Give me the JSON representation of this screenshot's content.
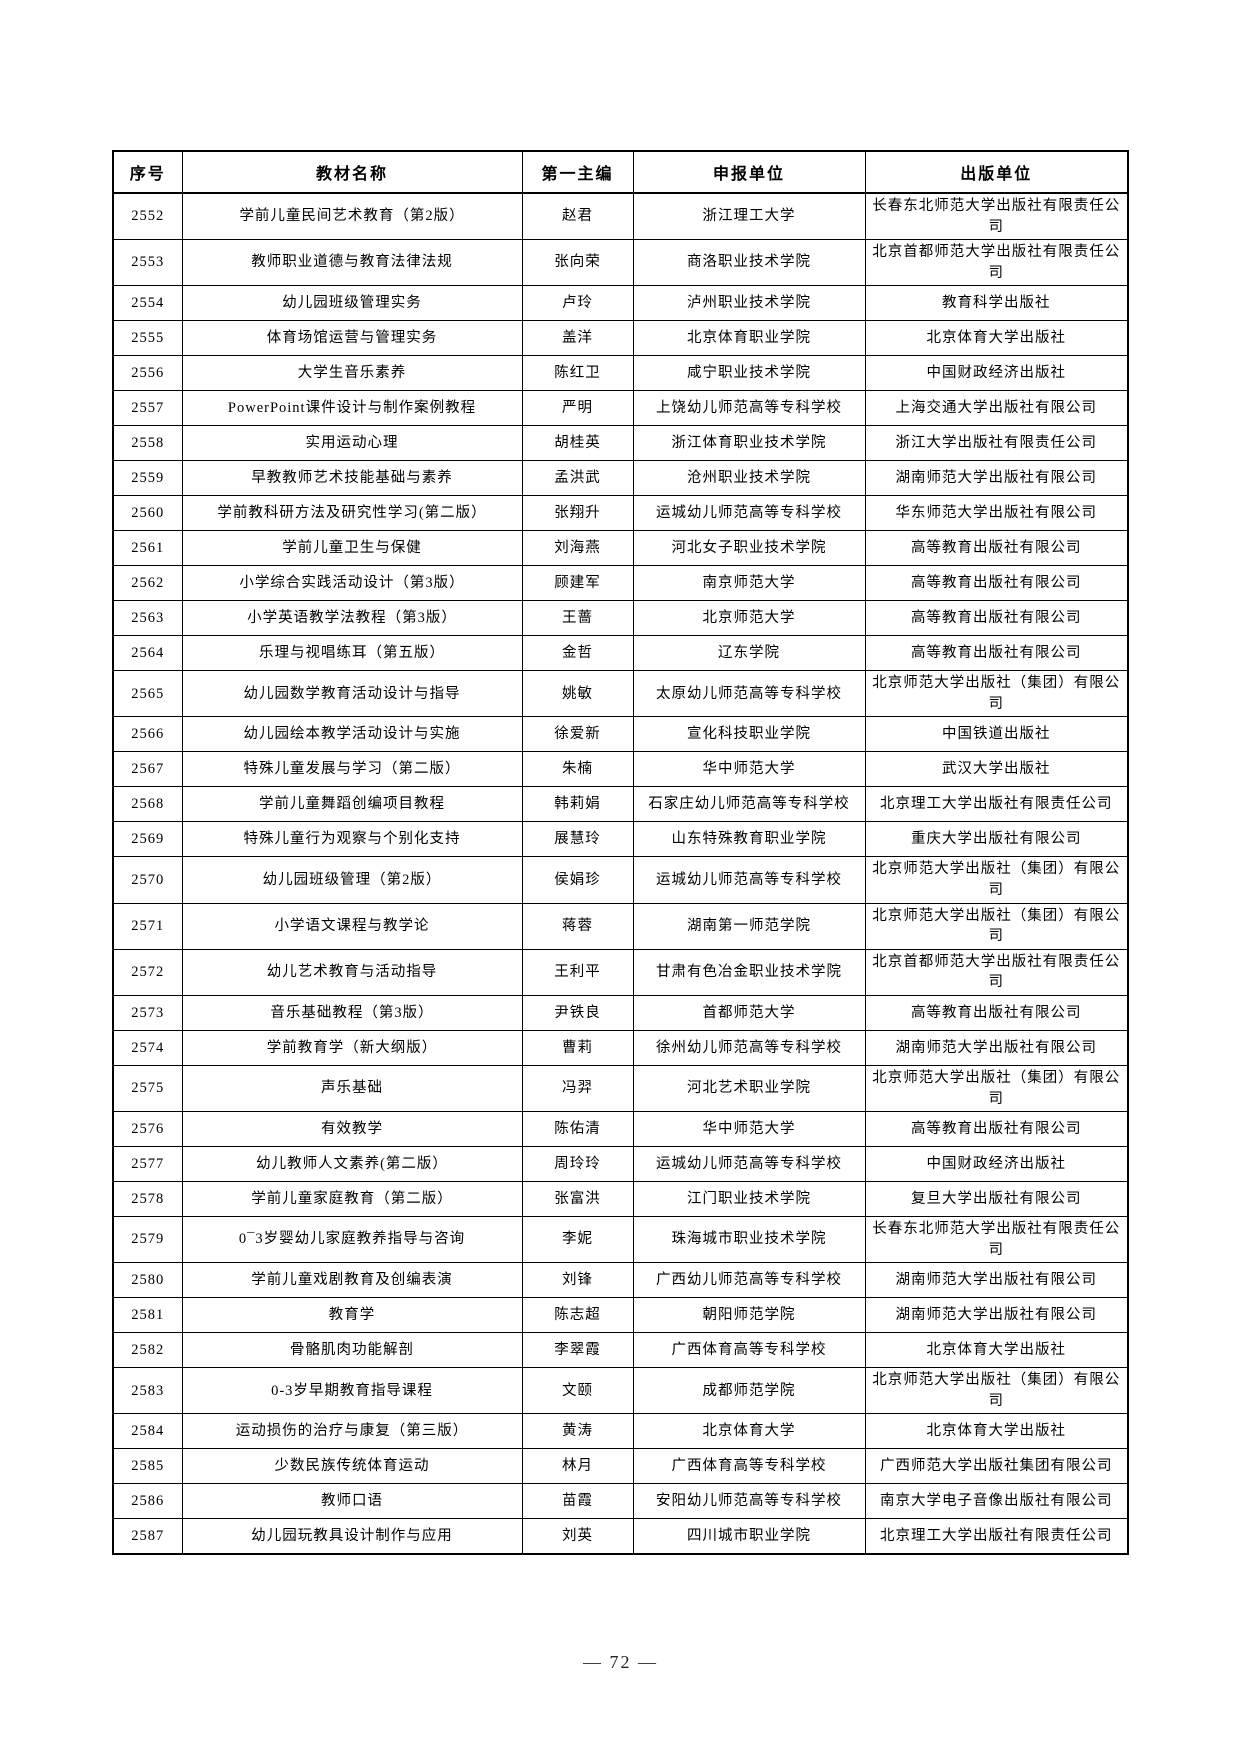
{
  "page": {
    "footer_page_number": "— 72 —"
  },
  "table": {
    "headers": [
      "序号",
      "教材名称",
      "第一主编",
      "申报单位",
      "出版单位"
    ],
    "fields": [
      "no",
      "title",
      "editor",
      "org",
      "publisher"
    ],
    "rows": [
      {
        "no": "2552",
        "title": "学前儿童民间艺术教育（第2版）",
        "editor": "赵君",
        "org": "浙江理工大学",
        "publisher": "长春东北师范大学出版社有限责任公司"
      },
      {
        "no": "2553",
        "title": "教师职业道德与教育法律法规",
        "editor": "张向荣",
        "org": "商洛职业技术学院",
        "publisher": "北京首都师范大学出版社有限责任公司"
      },
      {
        "no": "2554",
        "title": "幼儿园班级管理实务",
        "editor": "卢玲",
        "org": "泸州职业技术学院",
        "publisher": "教育科学出版社"
      },
      {
        "no": "2555",
        "title": "体育场馆运营与管理实务",
        "editor": "盖洋",
        "org": "北京体育职业学院",
        "publisher": "北京体育大学出版社"
      },
      {
        "no": "2556",
        "title": "大学生音乐素养",
        "editor": "陈红卫",
        "org": "咸宁职业技术学院",
        "publisher": "中国财政经济出版社"
      },
      {
        "no": "2557",
        "title": "PowerPoint课件设计与制作案例教程",
        "editor": "严明",
        "org": "上饶幼儿师范高等专科学校",
        "publisher": "上海交通大学出版社有限公司"
      },
      {
        "no": "2558",
        "title": "实用运动心理",
        "editor": "胡桂英",
        "org": "浙江体育职业技术学院",
        "publisher": "浙江大学出版社有限责任公司"
      },
      {
        "no": "2559",
        "title": "早教教师艺术技能基础与素养",
        "editor": "孟洪武",
        "org": "沧州职业技术学院",
        "publisher": "湖南师范大学出版社有限公司"
      },
      {
        "no": "2560",
        "title": "学前教科研方法及研究性学习(第二版）",
        "editor": "张翔升",
        "org": "运城幼儿师范高等专科学校",
        "publisher": "华东师范大学出版社有限公司"
      },
      {
        "no": "2561",
        "title": "学前儿童卫生与保健",
        "editor": "刘海燕",
        "org": "河北女子职业技术学院",
        "publisher": "高等教育出版社有限公司"
      },
      {
        "no": "2562",
        "title": "小学综合实践活动设计（第3版）",
        "editor": "顾建军",
        "org": "南京师范大学",
        "publisher": "高等教育出版社有限公司"
      },
      {
        "no": "2563",
        "title": "小学英语教学法教程（第3版）",
        "editor": "王蔷",
        "org": "北京师范大学",
        "publisher": "高等教育出版社有限公司"
      },
      {
        "no": "2564",
        "title": "乐理与视唱练耳（第五版）",
        "editor": "金哲",
        "org": "辽东学院",
        "publisher": "高等教育出版社有限公司"
      },
      {
        "no": "2565",
        "title": "幼儿园数学教育活动设计与指导",
        "editor": "姚敏",
        "org": "太原幼儿师范高等专科学校",
        "publisher": "北京师范大学出版社（集团）有限公司"
      },
      {
        "no": "2566",
        "title": "幼儿园绘本教学活动设计与实施",
        "editor": "徐爱新",
        "org": "宣化科技职业学院",
        "publisher": "中国铁道出版社"
      },
      {
        "no": "2567",
        "title": "特殊儿童发展与学习（第二版）",
        "editor": "朱楠",
        "org": "华中师范大学",
        "publisher": "武汉大学出版社"
      },
      {
        "no": "2568",
        "title": "学前儿童舞蹈创编项目教程",
        "editor": "韩莉娟",
        "org": "石家庄幼儿师范高等专科学校",
        "publisher": "北京理工大学出版社有限责任公司"
      },
      {
        "no": "2569",
        "title": "特殊儿童行为观察与个别化支持",
        "editor": "展慧玲",
        "org": "山东特殊教育职业学院",
        "publisher": "重庆大学出版社有限公司"
      },
      {
        "no": "2570",
        "title": "幼儿园班级管理（第2版）",
        "editor": "侯娟珍",
        "org": "运城幼儿师范高等专科学校",
        "publisher": "北京师范大学出版社（集团）有限公司"
      },
      {
        "no": "2571",
        "title": "小学语文课程与教学论",
        "editor": "蒋蓉",
        "org": "湖南第一师范学院",
        "publisher": "北京师范大学出版社（集团）有限公司"
      },
      {
        "no": "2572",
        "title": "幼儿艺术教育与活动指导",
        "editor": "王利平",
        "org": "甘肃有色冶金职业技术学院",
        "publisher": "北京首都师范大学出版社有限责任公司"
      },
      {
        "no": "2573",
        "title": "音乐基础教程（第3版）",
        "editor": "尹铁良",
        "org": "首都师范大学",
        "publisher": "高等教育出版社有限公司"
      },
      {
        "no": "2574",
        "title": "学前教育学（新大纲版）",
        "editor": "曹莉",
        "org": "徐州幼儿师范高等专科学校",
        "publisher": "湖南师范大学出版社有限公司"
      },
      {
        "no": "2575",
        "title": "声乐基础",
        "editor": "冯羿",
        "org": "河北艺术职业学院",
        "publisher": "北京师范大学出版社（集团）有限公司"
      },
      {
        "no": "2576",
        "title": "有效教学",
        "editor": "陈佑清",
        "org": "华中师范大学",
        "publisher": "高等教育出版社有限公司"
      },
      {
        "no": "2577",
        "title": "幼儿教师人文素养(第二版）",
        "editor": "周玲玲",
        "org": "运城幼儿师范高等专科学校",
        "publisher": "中国财政经济出版社"
      },
      {
        "no": "2578",
        "title": "学前儿童家庭教育（第二版）",
        "editor": "张富洪",
        "org": "江门职业技术学院",
        "publisher": "复旦大学出版社有限公司"
      },
      {
        "no": "2579",
        "title": "0¯3岁婴幼儿家庭教养指导与咨询",
        "editor": "李妮",
        "org": "珠海城市职业技术学院",
        "publisher": "长春东北师范大学出版社有限责任公司"
      },
      {
        "no": "2580",
        "title": "学前儿童戏剧教育及创编表演",
        "editor": "刘锋",
        "org": "广西幼儿师范高等专科学校",
        "publisher": "湖南师范大学出版社有限公司"
      },
      {
        "no": "2581",
        "title": "教育学",
        "editor": "陈志超",
        "org": "朝阳师范学院",
        "publisher": "湖南师范大学出版社有限公司"
      },
      {
        "no": "2582",
        "title": "骨骼肌肉功能解剖",
        "editor": "李翠霞",
        "org": "广西体育高等专科学校",
        "publisher": "北京体育大学出版社"
      },
      {
        "no": "2583",
        "title": "0-3岁早期教育指导课程",
        "editor": "文颐",
        "org": "成都师范学院",
        "publisher": "北京师范大学出版社（集团）有限公司"
      },
      {
        "no": "2584",
        "title": "运动损伤的治疗与康复（第三版）",
        "editor": "黄涛",
        "org": "北京体育大学",
        "publisher": "北京体育大学出版社"
      },
      {
        "no": "2585",
        "title": "少数民族传统体育运动",
        "editor": "林月",
        "org": "广西体育高等专科学校",
        "publisher": "广西师范大学出版社集团有限公司"
      },
      {
        "no": "2586",
        "title": "教师口语",
        "editor": "苗霞",
        "org": "安阳幼儿师范高等专科学校",
        "publisher": "南京大学电子音像出版社有限公司"
      },
      {
        "no": "2587",
        "title": "幼儿园玩教具设计制作与应用",
        "editor": "刘英",
        "org": "四川城市职业学院",
        "publisher": "北京理工大学出版社有限责任公司"
      }
    ]
  }
}
